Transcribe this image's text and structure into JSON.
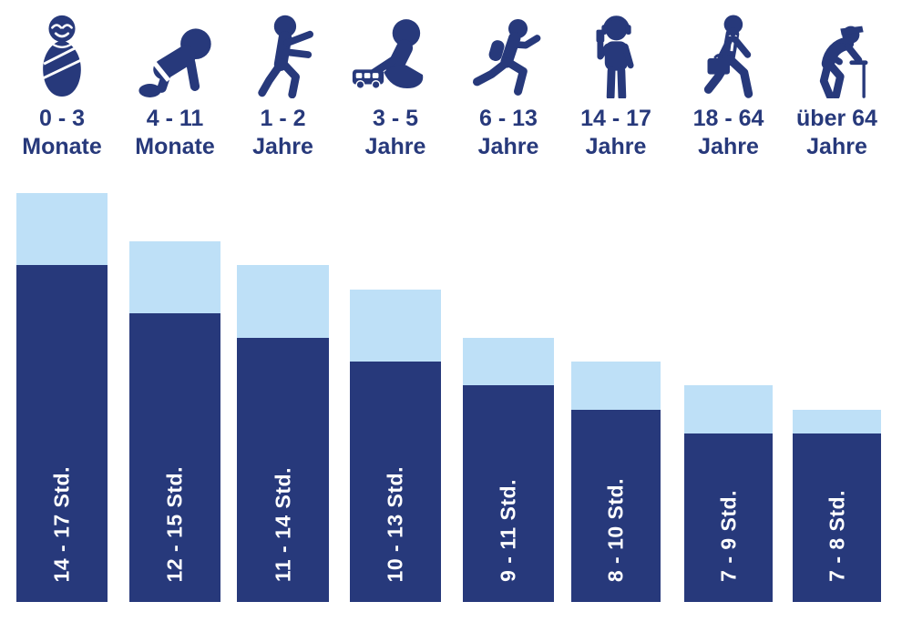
{
  "page": {
    "background": "#FFFFFF"
  },
  "colors": {
    "navy": "#27397B",
    "light_blue": "#BEE0F7",
    "label_text": "#FFFFFF"
  },
  "chart_data": {
    "type": "bar",
    "subtype": "stacked-range",
    "title": "",
    "categories": [
      "0 - 3 Monate",
      "4 - 11 Monate",
      "1 - 2 Jahre",
      "3 - 5 Jahre",
      "6 - 13 Jahre",
      "14 - 17 Jahre",
      "18 - 64 Jahre",
      "über 64 Jahre"
    ],
    "series": [
      {
        "name": "min_hours",
        "values": [
          14,
          12,
          11,
          10,
          9,
          8,
          7,
          7
        ],
        "color": "#27397B"
      },
      {
        "name": "max_hours",
        "values": [
          17,
          15,
          14,
          13,
          11,
          10,
          9,
          8
        ],
        "color": "#BEE0F7"
      }
    ],
    "bar_labels": [
      "14 - 17 Std.",
      "12 - 15 Std.",
      "11 - 14 Std.",
      "10 - 13 Std.",
      "9 - 11 Std.",
      "8 - 10 Std.",
      "7 - 9 Std.",
      "7 - 8 Std."
    ],
    "unit": "Std.",
    "ylim": [
      0,
      17
    ],
    "grid": false,
    "legend": false
  },
  "columns": [
    {
      "age_range": "0 - 3",
      "age_unit": "Monate",
      "icon": "swaddled-baby-icon",
      "bar_label": "14 - 17 Std."
    },
    {
      "age_range": "4 - 11",
      "age_unit": "Monate",
      "icon": "crawling-baby-icon",
      "bar_label": "12 - 15 Std."
    },
    {
      "age_range": "1 - 2",
      "age_unit": "Jahre",
      "icon": "toddler-walking-icon",
      "bar_label": "11 - 14 Std."
    },
    {
      "age_range": "3 - 5",
      "age_unit": "Jahre",
      "icon": "child-playing-icon",
      "bar_label": "10 - 13 Std."
    },
    {
      "age_range": "6 - 13",
      "age_unit": "Jahre",
      "icon": "school-child-running-icon",
      "bar_label": "9 - 11 Std."
    },
    {
      "age_range": "14 - 17",
      "age_unit": "Jahre",
      "icon": "teen-with-phone-icon",
      "bar_label": "8 - 10 Std."
    },
    {
      "age_range": "18 - 64",
      "age_unit": "Jahre",
      "icon": "adult-with-briefcase-icon",
      "bar_label": "7 - 9 Std."
    },
    {
      "age_range": "über 64",
      "age_unit": "Jahre",
      "icon": "senior-with-cane-icon",
      "bar_label": "7 - 8 Std."
    }
  ]
}
